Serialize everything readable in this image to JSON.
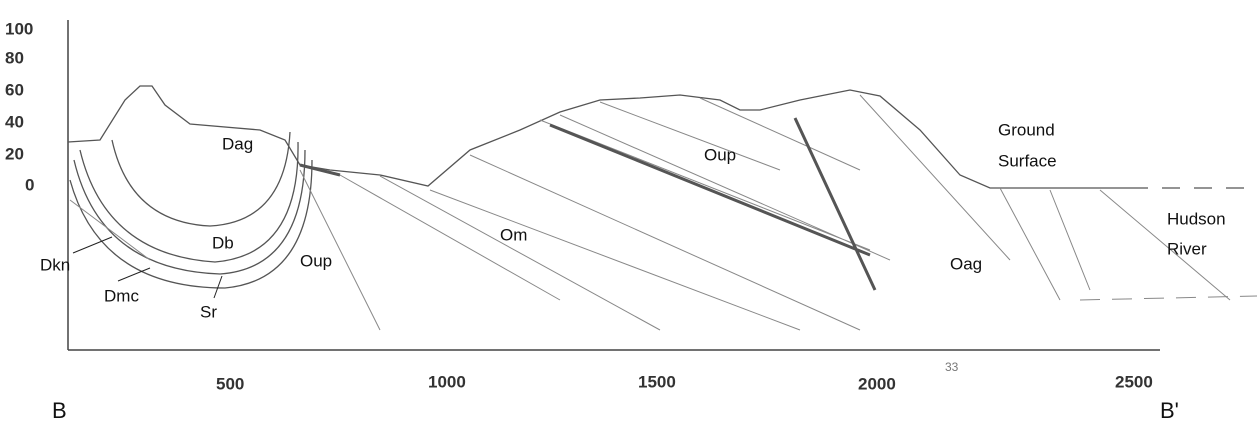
{
  "diagram": {
    "y_axis": {
      "ticks": [
        "100",
        "80",
        "60",
        "40",
        "20",
        "0"
      ]
    },
    "x_axis": {
      "ticks": [
        "500",
        "1000",
        "1500",
        "2000",
        "2500"
      ]
    },
    "units": [
      "Dag",
      "Db",
      "Dkn",
      "Dmc",
      "Sr",
      "Oup",
      "Om",
      "Oup",
      "Oag"
    ],
    "features": {
      "ground": [
        "Ground",
        "Surface"
      ],
      "river": [
        "Hudson",
        "River"
      ]
    },
    "note": "33",
    "endpoints": [
      "B",
      "B'"
    ]
  }
}
